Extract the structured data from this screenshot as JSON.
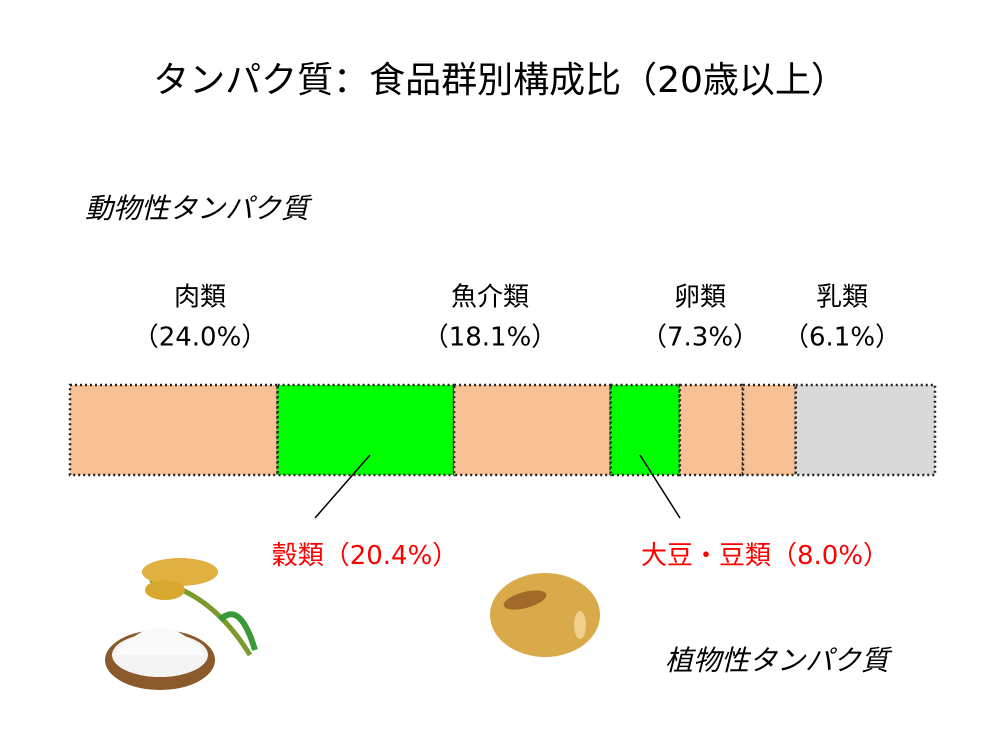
{
  "chart_data": {
    "type": "stacked-bar",
    "title": "タンパク質：食品群別構成比（20歳以上）",
    "group_labels": [
      "動物性タンパク質",
      "植物性タンパク質"
    ],
    "categories": [
      "肉類",
      "穀類",
      "魚介類",
      "大豆・豆類",
      "卵類",
      "乳類",
      null
    ],
    "values": [
      24.0,
      20.4,
      18.1,
      8.0,
      7.3,
      6.1,
      16.1
    ],
    "value_labels": [
      "（24.0%）",
      "（20.4%）",
      "（18.1%）",
      "（8.0%）",
      "（7.3%）",
      "（6.1%）",
      null
    ],
    "colors": [
      "#f8c195",
      "#00ff00",
      "#f8c195",
      "#00ff00",
      "#f8c195",
      "#f8c195",
      "#d9d9d9"
    ],
    "highlight_color": "#ff0000"
  }
}
